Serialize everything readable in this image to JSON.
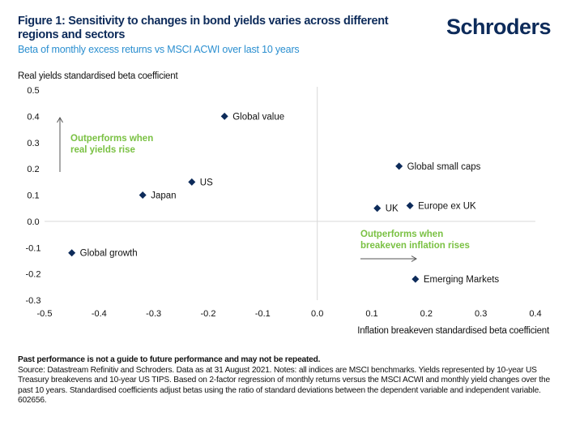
{
  "header": {
    "title": "Figure 1: Sensitivity to changes in bond yields varies across different regions and sectors",
    "subtitle": "Beta of monthly excess returns vs MSCI ACWI over last 10 years",
    "logo": "Schroders"
  },
  "chart_data": {
    "type": "scatter",
    "title": "Figure 1: Sensitivity to changes in bond yields varies across different regions and sectors",
    "subtitle": "Beta of monthly excess returns vs MSCI ACWI over last 10 years",
    "xlabel": "Inflation breakeven standardised beta coefficient",
    "ylabel": "Real yields standardised beta coefficient",
    "xlim": [
      -0.5,
      0.4
    ],
    "ylim": [
      -0.3,
      0.5
    ],
    "x_ticks": [
      "-0.5",
      "-0.4",
      "-0.3",
      "-0.2",
      "-0.1",
      "0.0",
      "0.1",
      "0.2",
      "0.3",
      "0.4"
    ],
    "y_ticks": [
      "0.5",
      "0.4",
      "0.3",
      "0.2",
      "0.1",
      "0.0",
      "-0.1",
      "-0.2",
      "-0.3"
    ],
    "grid": false,
    "marker_color": "#0d2b5a",
    "points": [
      {
        "label": "Global value",
        "x": -0.17,
        "y": 0.4
      },
      {
        "label": "US",
        "x": -0.23,
        "y": 0.15
      },
      {
        "label": "Japan",
        "x": -0.32,
        "y": 0.1
      },
      {
        "label": "Global growth",
        "x": -0.45,
        "y": -0.12
      },
      {
        "label": "Global small caps",
        "x": 0.15,
        "y": 0.21
      },
      {
        "label": "UK",
        "x": 0.11,
        "y": 0.05
      },
      {
        "label": "Europe ex UK",
        "x": 0.17,
        "y": 0.06
      },
      {
        "label": "Emerging Markets",
        "x": 0.18,
        "y": -0.22
      }
    ],
    "annotations": [
      {
        "text": [
          "Outperforms when",
          "real yields rise"
        ],
        "arrow": "up",
        "color": "#7ac143"
      },
      {
        "text": [
          "Outperforms when",
          "breakeven inflation rises"
        ],
        "arrow": "right",
        "color": "#7ac143"
      }
    ]
  },
  "footer": {
    "disclaimer": "Past performance is not a guide to future performance and may not be repeated.",
    "source": "Source: Datastream Refinitiv and Schroders. Data as at 31 August 2021. Notes: all indices are MSCI benchmarks. Yields represented by 10-year US Treasury breakevens and 10-year US TIPS. Based on 2-factor regression of monthly returns versus the MSCI ACWI and monthly yield changes over the past 10 years. Standardised coefficients adjust betas using the ratio of standard deviations between the dependent variable and independent variable. 602656."
  }
}
